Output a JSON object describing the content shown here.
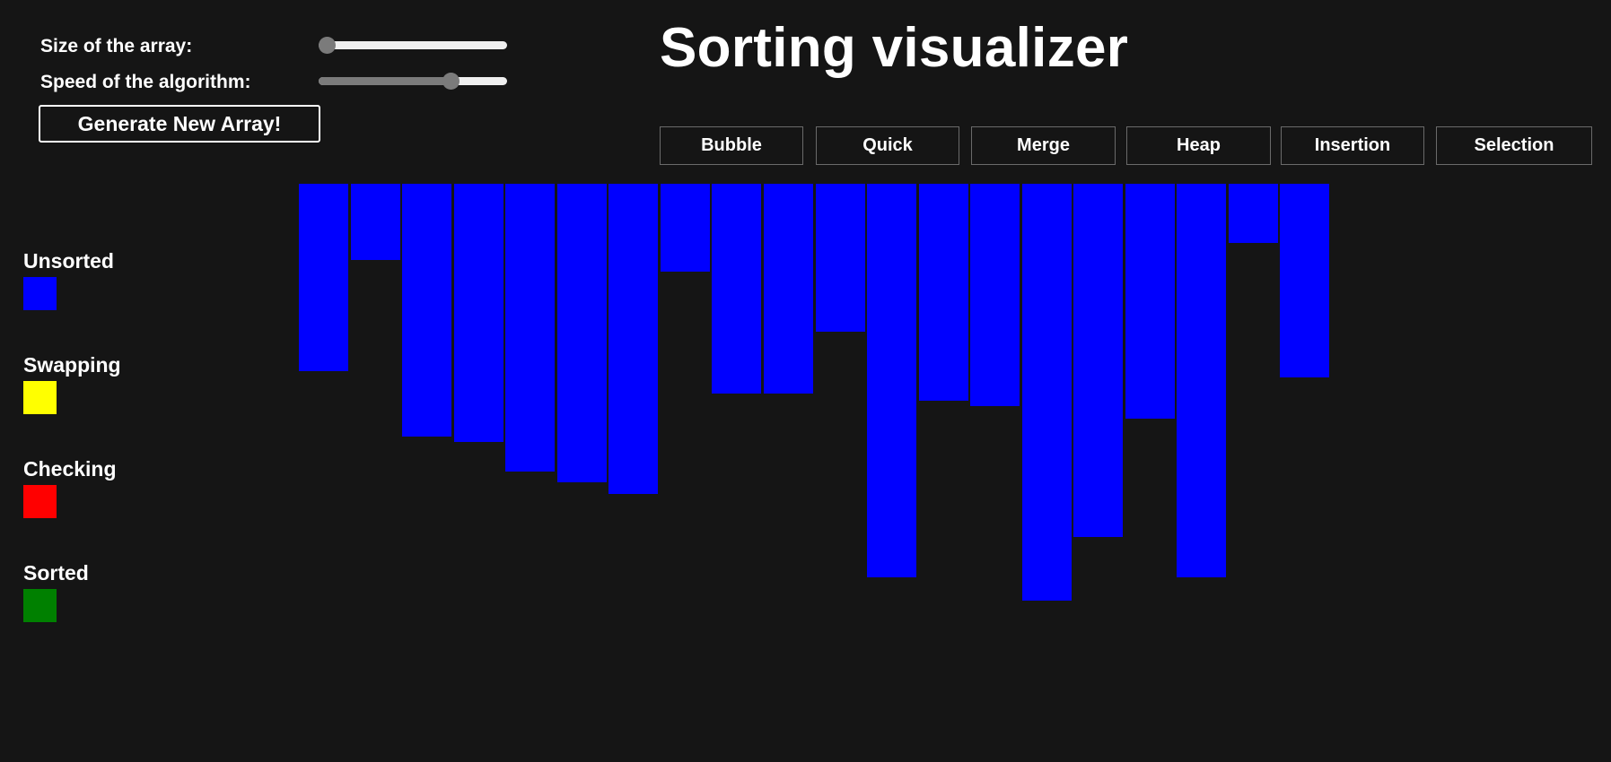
{
  "controls": {
    "size_label": "Size of the array:",
    "speed_label": "Speed of the algorithm:",
    "size_value": 0,
    "speed_value": 0.7,
    "generate_label": "Generate New Array!"
  },
  "title": "Sorting visualizer",
  "algorithms": [
    "Bubble",
    "Quick",
    "Merge",
    "Heap",
    "Insertion",
    "Selection"
  ],
  "legend": [
    {
      "label": "Unsorted",
      "color": "#0000ff"
    },
    {
      "label": "Swapping",
      "color": "#ffff00"
    },
    {
      "label": "Checking",
      "color": "#ff0000"
    },
    {
      "label": "Sorted",
      "color": "#008000"
    }
  ],
  "chart_data": {
    "type": "bar",
    "bar_color": "#0000ff",
    "values": [
      209,
      85,
      282,
      288,
      321,
      333,
      346,
      98,
      234,
      234,
      165,
      439,
      242,
      248,
      465,
      394,
      262,
      439,
      66,
      216
    ],
    "ylim": [
      0,
      500
    ]
  }
}
